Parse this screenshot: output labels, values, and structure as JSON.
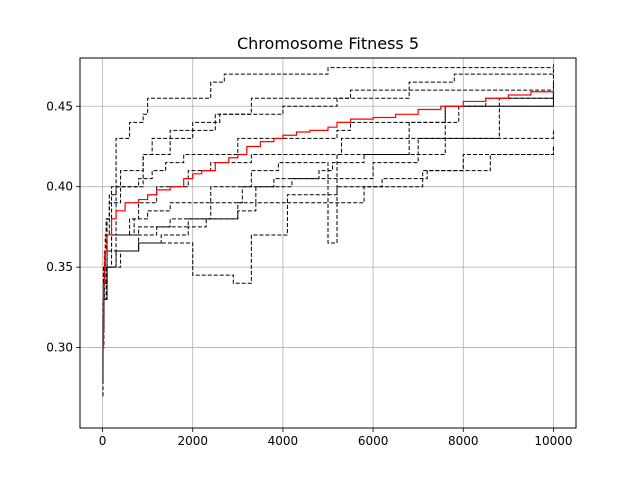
{
  "chart_data": {
    "type": "line",
    "title": "Chromosome Fitness 5",
    "xlabel": "",
    "ylabel": "",
    "xlim": [
      -500,
      10500
    ],
    "ylim": [
      0.25,
      0.48
    ],
    "xticks": [
      0,
      2000,
      4000,
      6000,
      8000,
      10000
    ],
    "xtick_labels": [
      "0",
      "2000",
      "4000",
      "6000",
      "8000",
      "10000"
    ],
    "yticks": [
      0.3,
      0.35,
      0.4,
      0.45
    ],
    "ytick_labels": [
      "0.30",
      "0.35",
      "0.40",
      "0.45"
    ],
    "grid": true,
    "legend": "none",
    "series": [
      {
        "style": "dashed",
        "color": "#000000",
        "x": [
          0,
          10,
          20,
          40,
          60,
          100,
          180,
          300,
          320,
          600,
          900,
          1000,
          1600,
          2400,
          2700,
          3000,
          5000,
          10000
        ],
        "y": [
          0.28,
          0.3,
          0.33,
          0.35,
          0.36,
          0.37,
          0.37,
          0.43,
          0.43,
          0.44,
          0.445,
          0.455,
          0.455,
          0.465,
          0.47,
          0.47,
          0.474,
          0.474
        ]
      },
      {
        "style": "dashed",
        "color": "#000000",
        "x": [
          0,
          10,
          20,
          40,
          80,
          150,
          300,
          900,
          1100,
          2000,
          2600,
          3300,
          5500,
          6800,
          7800,
          10000
        ],
        "y": [
          0.27,
          0.31,
          0.35,
          0.36,
          0.38,
          0.395,
          0.4,
          0.42,
          0.43,
          0.44,
          0.445,
          0.455,
          0.46,
          0.465,
          0.47,
          0.472
        ]
      },
      {
        "style": "dashed",
        "color": "#000000",
        "x": [
          0,
          10,
          20,
          50,
          100,
          200,
          400,
          900,
          1500,
          2500,
          4000,
          5200,
          6800,
          10000
        ],
        "y": [
          0.3,
          0.32,
          0.34,
          0.36,
          0.38,
          0.4,
          0.41,
          0.42,
          0.435,
          0.445,
          0.45,
          0.455,
          0.46,
          0.476
        ]
      },
      {
        "style": "dashed",
        "color": "#000000",
        "x": [
          0,
          10,
          30,
          60,
          150,
          400,
          800,
          1100,
          1400,
          1800,
          3000,
          5200,
          5500,
          7600,
          8500,
          10000
        ],
        "y": [
          0.3,
          0.33,
          0.35,
          0.37,
          0.39,
          0.4,
          0.405,
          0.41,
          0.415,
          0.42,
          0.43,
          0.435,
          0.44,
          0.45,
          0.455,
          0.46
        ]
      },
      {
        "style": "dashed",
        "color": "#000000",
        "x": [
          0,
          10,
          30,
          80,
          200,
          600,
          800,
          1200,
          1900,
          2400,
          3300,
          5300,
          8800,
          10000
        ],
        "y": [
          0.29,
          0.31,
          0.33,
          0.35,
          0.37,
          0.38,
          0.39,
          0.4,
          0.41,
          0.415,
          0.42,
          0.43,
          0.455,
          0.46
        ]
      },
      {
        "style": "dashed",
        "color": "#000000",
        "x": [
          0,
          10,
          30,
          100,
          200,
          700,
          1000,
          1500,
          2400,
          3300,
          3900,
          5000,
          5200,
          7600,
          10000
        ],
        "y": [
          0.29,
          0.32,
          0.34,
          0.36,
          0.37,
          0.38,
          0.385,
          0.39,
          0.4,
          0.41,
          0.415,
          0.365,
          0.42,
          0.45,
          0.465
        ]
      },
      {
        "style": "dashed",
        "color": "#000000",
        "x": [
          0,
          10,
          30,
          100,
          300,
          800,
          1200,
          1900,
          3000,
          3400,
          4200,
          6000,
          7000,
          10000
        ],
        "y": [
          0.28,
          0.3,
          0.33,
          0.35,
          0.36,
          0.37,
          0.375,
          0.38,
          0.39,
          0.4,
          0.405,
          0.415,
          0.43,
          0.435
        ]
      },
      {
        "style": "dashed",
        "color": "#000000",
        "x": [
          0,
          10,
          30,
          100,
          400,
          800,
          1300,
          1900,
          2300,
          3000,
          3400,
          4100,
          5200,
          6200,
          7200,
          8600,
          10000
        ],
        "y": [
          0.3,
          0.32,
          0.34,
          0.35,
          0.36,
          0.365,
          0.37,
          0.375,
          0.38,
          0.385,
          0.39,
          0.395,
          0.4,
          0.405,
          0.41,
          0.42,
          0.425
        ]
      },
      {
        "style": "dashed",
        "color": "#000000",
        "x": [
          0,
          10,
          30,
          100,
          300,
          800,
          1600,
          2000,
          2900,
          3300,
          4100,
          5800,
          7100,
          8000,
          10000
        ],
        "y": [
          0.29,
          0.31,
          0.33,
          0.35,
          0.36,
          0.365,
          0.365,
          0.345,
          0.34,
          0.37,
          0.39,
          0.4,
          0.41,
          0.42,
          0.425
        ]
      },
      {
        "style": "dashed",
        "color": "#000000",
        "x": [
          0,
          10,
          30,
          100,
          300,
          800,
          1500,
          2400,
          3100,
          3800,
          4800,
          5100,
          5800,
          6800,
          7900,
          10000
        ],
        "y": [
          0.3,
          0.32,
          0.34,
          0.36,
          0.37,
          0.375,
          0.38,
          0.39,
          0.4,
          0.405,
          0.41,
          0.415,
          0.42,
          0.44,
          0.45,
          0.458
        ]
      },
      {
        "style": "solid",
        "color": "#ff0000",
        "name": "",
        "x": [
          0,
          20,
          50,
          100,
          200,
          300,
          500,
          800,
          1000,
          1200,
          1500,
          1800,
          2000,
          2200,
          2500,
          2800,
          3000,
          3200,
          3500,
          3800,
          4000,
          4300,
          4600,
          5000,
          5200,
          5500,
          6000,
          6500,
          7000,
          7500,
          8000,
          8500,
          9000,
          9500,
          10000
        ],
        "y": [
          0.3,
          0.34,
          0.36,
          0.37,
          0.38,
          0.385,
          0.39,
          0.392,
          0.395,
          0.398,
          0.4,
          0.405,
          0.408,
          0.41,
          0.415,
          0.418,
          0.42,
          0.425,
          0.428,
          0.43,
          0.432,
          0.434,
          0.435,
          0.437,
          0.44,
          0.442,
          0.443,
          0.445,
          0.448,
          0.45,
          0.453,
          0.455,
          0.457,
          0.459,
          0.461
        ]
      }
    ]
  }
}
